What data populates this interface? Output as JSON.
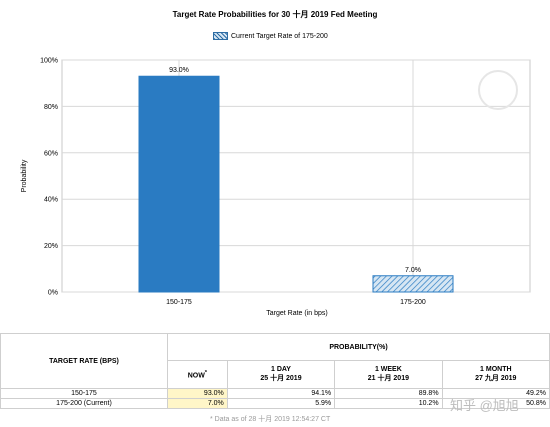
{
  "header": {
    "title": "Target Rate Probabilities for 30 十月 2019 Fed Meeting",
    "legend_label": "Current Target Rate of 175-200"
  },
  "chart_data": {
    "type": "bar",
    "title": "Target Rate Probabilities for 30 十月 2019 Fed Meeting",
    "categories": [
      "150-175",
      "175-200"
    ],
    "series": [
      {
        "name": "Current Target Rate of 175-200",
        "values": [
          93.0,
          7.0
        ]
      }
    ],
    "value_labels": [
      "93.0%",
      "7.0%"
    ],
    "xlabel": "Target Rate (in bps)",
    "ylabel": "Probability",
    "ylim": [
      0,
      100
    ],
    "yticks": [
      "0%",
      "20%",
      "40%",
      "60%",
      "80%",
      "100%"
    ],
    "grid": true,
    "bar_colors": [
      "#2a7bc2",
      "#2a7bc2"
    ],
    "bar_styles": [
      "solid",
      "hatched"
    ],
    "legend_position": "top-center"
  },
  "table": {
    "target_rate_header": "TARGET RATE (BPS)",
    "probability_header": "PROBABILITY(%)",
    "columns": [
      {
        "line1": "NOW",
        "line2": "",
        "marker": "*"
      },
      {
        "line1": "1 DAY",
        "line2": "25 十月 2019"
      },
      {
        "line1": "1 WEEK",
        "line2": "21 十月 2019"
      },
      {
        "line1": "1 MONTH",
        "line2": "27 九月 2019"
      }
    ],
    "rows": [
      {
        "label": "150-175",
        "values": [
          "93.0%",
          "94.1%",
          "89.8%",
          "49.2%"
        ]
      },
      {
        "label": "175-200 (Current)",
        "values": [
          "7.0%",
          "5.9%",
          "10.2%",
          "50.8%"
        ]
      }
    ],
    "footnote": "* Data as of 28 十月 2019 12:54:27 CT"
  },
  "watermark": {
    "credit": "知乎 @旭旭"
  },
  "colors": {
    "bar": "#2a7bc2",
    "highlight": "#fff6c8"
  }
}
